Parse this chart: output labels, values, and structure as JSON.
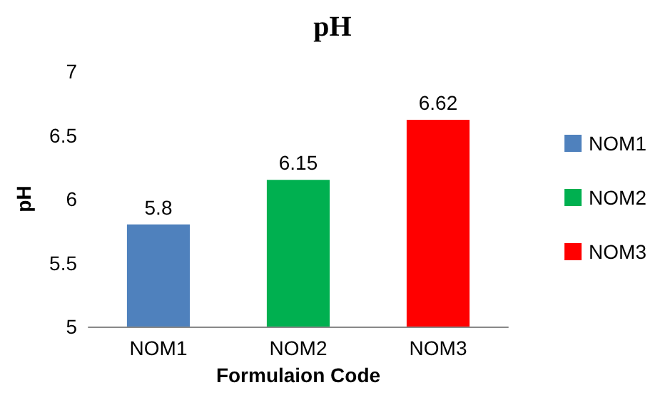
{
  "chart_data": {
    "type": "bar",
    "title": "pH",
    "xlabel": "Formulaion Code",
    "ylabel": "pH",
    "categories": [
      "NOM1",
      "NOM2",
      "NOM3"
    ],
    "series": [
      {
        "name": "NOM1",
        "color": "#4f81bd",
        "values": [
          5.8,
          null,
          null
        ]
      },
      {
        "name": "NOM2",
        "color": "#00b050",
        "values": [
          null,
          6.15,
          null
        ]
      },
      {
        "name": "NOM3",
        "color": "#ff0000",
        "values": [
          null,
          null,
          6.62
        ]
      }
    ],
    "ylim": [
      5,
      7
    ],
    "yticks": [
      5,
      5.5,
      6,
      6.5,
      7
    ],
    "grid": false,
    "legend": "right",
    "data_labels": true
  }
}
